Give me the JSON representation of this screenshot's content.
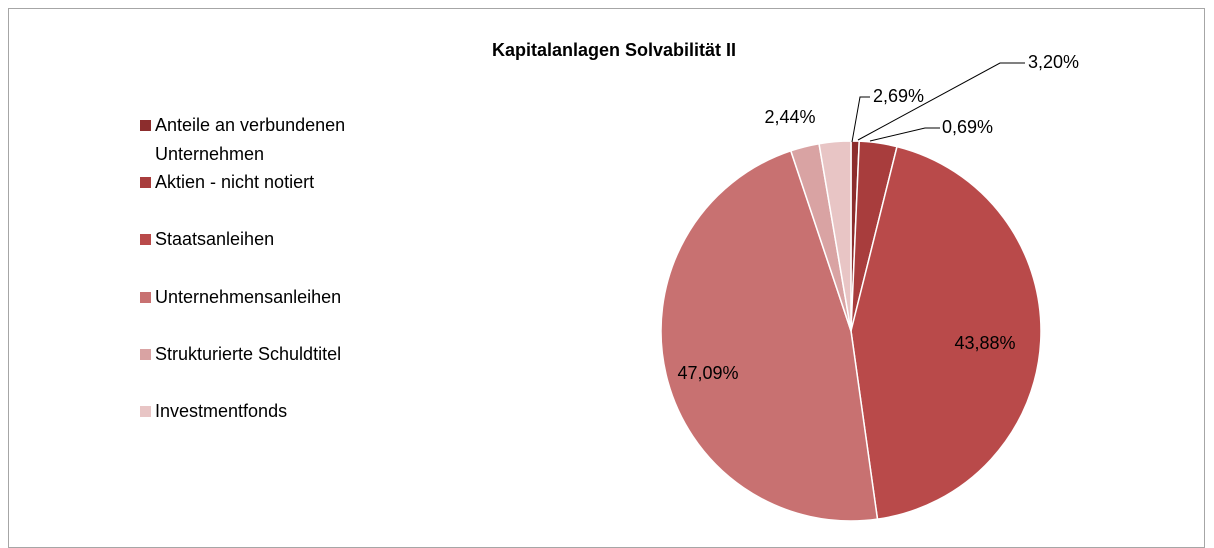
{
  "chart_data": {
    "type": "pie",
    "title": "Kapitalanlagen Solvabilität II",
    "categories": [
      "Anteile an verbundenen Unternehmen",
      "Aktien - nicht notiert",
      "Staatsanleihen",
      "Unternehmensanleihen",
      "Strukturierte Schuldtitel",
      "Investmentfonds"
    ],
    "values": [
      0.69,
      3.2,
      43.88,
      47.09,
      2.44,
      2.69
    ],
    "value_labels": [
      "0,69%",
      "3,20%",
      "43,88%",
      "47,09%",
      "2,44%",
      "2,69%"
    ],
    "colors": [
      "#8c2d2d",
      "#a83d3d",
      "#b94a4a",
      "#c87171",
      "#d9a3a3",
      "#e8c5c5"
    ],
    "legend": "left"
  }
}
